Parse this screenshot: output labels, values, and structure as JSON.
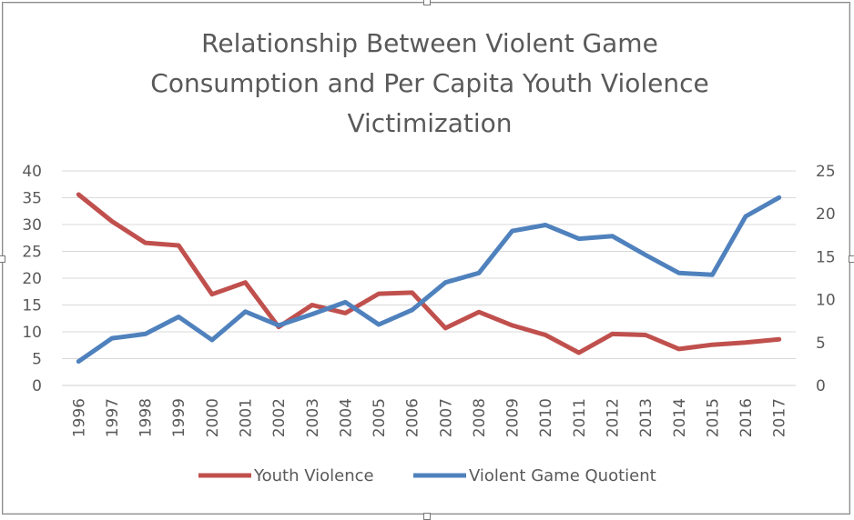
{
  "chart_data": {
    "type": "line",
    "title_lines": [
      "Relationship Between Violent Game",
      "Consumption and Per Capita Youth Violence",
      "Victimization"
    ],
    "categories": [
      "1996",
      "1997",
      "1998",
      "1999",
      "2000",
      "2001",
      "2002",
      "2003",
      "2004",
      "2005",
      "2006",
      "2007",
      "2008",
      "2009",
      "2010",
      "2011",
      "2012",
      "2013",
      "2014",
      "2015",
      "2016",
      "2017"
    ],
    "series": [
      {
        "name": "Youth Violence",
        "axis": "left",
        "color": "#c0504d",
        "values": [
          35.6,
          30.6,
          26.6,
          26.1,
          17.0,
          19.2,
          10.9,
          15.0,
          13.5,
          17.1,
          17.3,
          10.7,
          13.7,
          11.2,
          9.4,
          6.1,
          9.6,
          9.4,
          6.8,
          7.6,
          8.0,
          8.6
        ]
      },
      {
        "name": "Violent Game Quotient",
        "axis": "right",
        "color": "#4f81bd",
        "values": [
          2.8,
          5.5,
          6.0,
          8.0,
          5.3,
          8.6,
          7.0,
          8.3,
          9.7,
          7.1,
          8.8,
          12.0,
          13.1,
          18.0,
          18.7,
          17.1,
          17.4,
          15.2,
          13.1,
          12.9,
          19.7,
          21.9
        ]
      }
    ],
    "y_left": {
      "min": 0,
      "max": 40,
      "step": 5,
      "labels": [
        "0",
        "5",
        "10",
        "15",
        "20",
        "25",
        "30",
        "35",
        "40"
      ]
    },
    "y_right": {
      "min": 0,
      "max": 25,
      "step": 5,
      "labels": [
        "0",
        "5",
        "10",
        "15",
        "20",
        "25"
      ]
    },
    "grid": true,
    "legend_position": "bottom"
  }
}
